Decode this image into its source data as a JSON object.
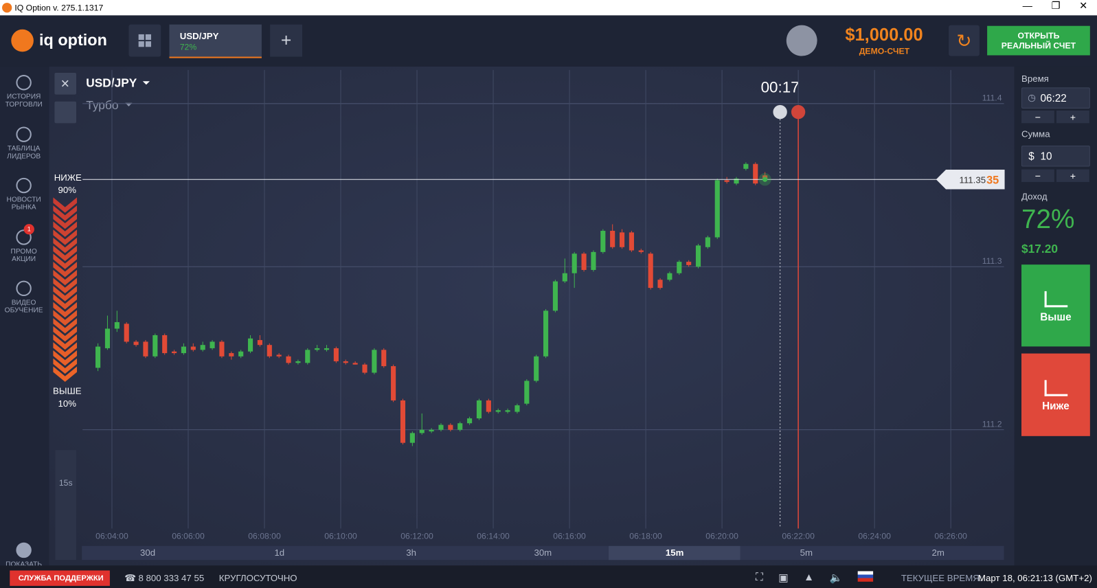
{
  "window": {
    "title": "IQ Option v. 275.1.1317"
  },
  "header": {
    "logo": "iq option",
    "tab": {
      "asset": "USD/JPY",
      "payout": "72%"
    },
    "balance": "$1,000.00",
    "account_type": "ДЕМО-СЧЕТ",
    "cta": "ОТКРЫТЬ РЕАЛЬНЫЙ СЧЕТ"
  },
  "sidebar": {
    "items": [
      "ИСТОРИЯ ТОРГОВЛИ",
      "ТАБЛИЦА ЛИДЕРОВ",
      "НОВОСТИ РЫНКА",
      "ПРОМО АКЦИИ",
      "ВИДЕО ОБУЧЕНИЕ"
    ],
    "badge": "1",
    "show": "ПОКАЗАТЬ"
  },
  "chart_header": {
    "asset": "USD/JPY",
    "mode": "Турбо",
    "timer": "00:17"
  },
  "sentiment": {
    "down_label": "НИЖЕ",
    "down_value": "90%",
    "up_label": "ВЫШЕ",
    "up_value": "10%"
  },
  "tools": {
    "period": "15s"
  },
  "timeframes": {
    "items": [
      "30d",
      "1d",
      "3h",
      "30m",
      "15m",
      "5m",
      "2m"
    ],
    "active": 4
  },
  "chart_data": {
    "type": "candlestick",
    "x_labels": [
      "06:04:00",
      "06:06:00",
      "06:08:00",
      "06:10:00",
      "06:12:00",
      "06:14:00",
      "06:16:00",
      "06:18:00",
      "06:20:00",
      "06:22:00",
      "06:24:00",
      "06:26:00"
    ],
    "ylim": [
      111.13,
      111.42
    ],
    "yticks": [
      111.2,
      111.3,
      111.4
    ],
    "up_color": "#3fb54f",
    "down_color": "#e24a36",
    "current_price": {
      "value": 111.3535,
      "label": "111.35",
      "label_tail": "35"
    },
    "open": [
      111.238,
      111.25,
      111.262,
      111.265,
      111.254,
      111.254,
      111.245,
      111.258,
      111.248,
      111.247,
      111.251,
      111.249,
      111.25,
      111.254,
      111.247,
      111.245,
      111.248,
      111.255,
      111.252,
      111.246,
      111.245,
      111.241,
      111.241,
      111.249,
      111.249,
      111.25,
      111.242,
      111.241,
      111.24,
      111.235,
      111.249,
      111.239,
      111.218,
      111.192,
      111.198,
      111.199,
      111.2,
      111.203,
      111.2,
      111.204,
      111.207,
      111.218,
      111.211,
      111.211,
      111.211,
      111.216,
      111.23,
      111.245,
      111.273,
      111.291,
      111.296,
      111.308,
      111.298,
      111.309,
      111.322,
      111.321,
      111.321,
      111.31,
      111.308,
      111.292,
      111.292,
      111.296,
      111.303,
      111.3,
      111.312,
      111.318,
      111.353,
      111.351,
      111.36,
      111.363,
      111.356
    ],
    "high": [
      111.253,
      111.27,
      111.273,
      111.266,
      111.255,
      111.255,
      111.259,
      111.259,
      111.249,
      111.253,
      111.253,
      111.254,
      111.255,
      111.255,
      111.248,
      111.249,
      111.258,
      111.258,
      111.253,
      111.247,
      111.246,
      111.243,
      111.25,
      111.252,
      111.252,
      111.251,
      111.243,
      111.242,
      111.241,
      111.25,
      111.25,
      111.24,
      111.219,
      111.199,
      111.21,
      111.201,
      111.204,
      111.204,
      111.205,
      111.208,
      111.219,
      111.219,
      111.213,
      111.213,
      111.216,
      111.231,
      111.246,
      111.274,
      111.292,
      111.305,
      111.309,
      111.309,
      111.31,
      111.323,
      111.326,
      111.323,
      111.322,
      111.311,
      111.309,
      111.293,
      111.297,
      111.304,
      111.304,
      111.314,
      111.319,
      111.354,
      111.355,
      111.355,
      111.364,
      111.364,
      111.358
    ],
    "low": [
      111.236,
      111.249,
      111.26,
      111.253,
      111.251,
      111.244,
      111.244,
      111.246,
      111.246,
      111.246,
      111.248,
      111.248,
      111.249,
      111.244,
      111.243,
      111.244,
      111.247,
      111.251,
      111.244,
      111.244,
      111.24,
      111.24,
      111.24,
      111.248,
      111.248,
      111.241,
      111.24,
      111.24,
      111.234,
      111.234,
      111.238,
      111.217,
      111.191,
      111.19,
      111.197,
      111.198,
      111.199,
      111.199,
      111.199,
      111.203,
      111.206,
      111.21,
      111.21,
      111.21,
      111.21,
      111.215,
      111.229,
      111.244,
      111.272,
      111.29,
      111.287,
      111.297,
      111.297,
      111.308,
      111.311,
      111.311,
      111.309,
      111.308,
      111.286,
      111.286,
      111.291,
      111.295,
      111.3,
      111.299,
      111.311,
      111.317,
      111.351,
      111.35,
      111.359,
      111.35,
      111.352
    ],
    "close": [
      111.251,
      111.262,
      111.266,
      111.254,
      111.252,
      111.245,
      111.258,
      111.247,
      111.247,
      111.251,
      111.249,
      111.252,
      111.254,
      111.245,
      111.245,
      111.248,
      111.256,
      111.252,
      111.245,
      111.245,
      111.241,
      111.242,
      111.249,
      111.25,
      111.25,
      111.242,
      111.241,
      111.24,
      111.235,
      111.249,
      111.239,
      111.218,
      111.192,
      111.198,
      111.2,
      111.2,
      111.203,
      111.2,
      111.204,
      111.207,
      111.218,
      111.211,
      111.212,
      111.212,
      111.215,
      111.23,
      111.245,
      111.273,
      111.291,
      111.296,
      111.308,
      111.298,
      111.309,
      111.322,
      111.312,
      111.312,
      111.31,
      111.309,
      111.287,
      111.287,
      111.296,
      111.303,
      111.301,
      111.313,
      111.318,
      111.353,
      111.352,
      111.354,
      111.363,
      111.351,
      111.3535
    ]
  },
  "trade_panel": {
    "time_label": "Время",
    "time": "06:22",
    "amount_label": "Сумма",
    "currency": "$",
    "amount": "10",
    "minus": "−",
    "plus": "+",
    "profit_label": "Доход",
    "profit_pct": "72%",
    "profit": "$17.20",
    "up": "Выше",
    "down": "Ниже"
  },
  "status_bar": {
    "support": "СЛУЖБА ПОДДЕРЖКИ",
    "phone": "8 800 333 47 55",
    "hours": "КРУГЛОСУТОЧНО",
    "clock_label": "ТЕКУЩЕЕ ВРЕМЯ:",
    "clock": "Март 18, 06:21:13 (GMT+2)"
  }
}
